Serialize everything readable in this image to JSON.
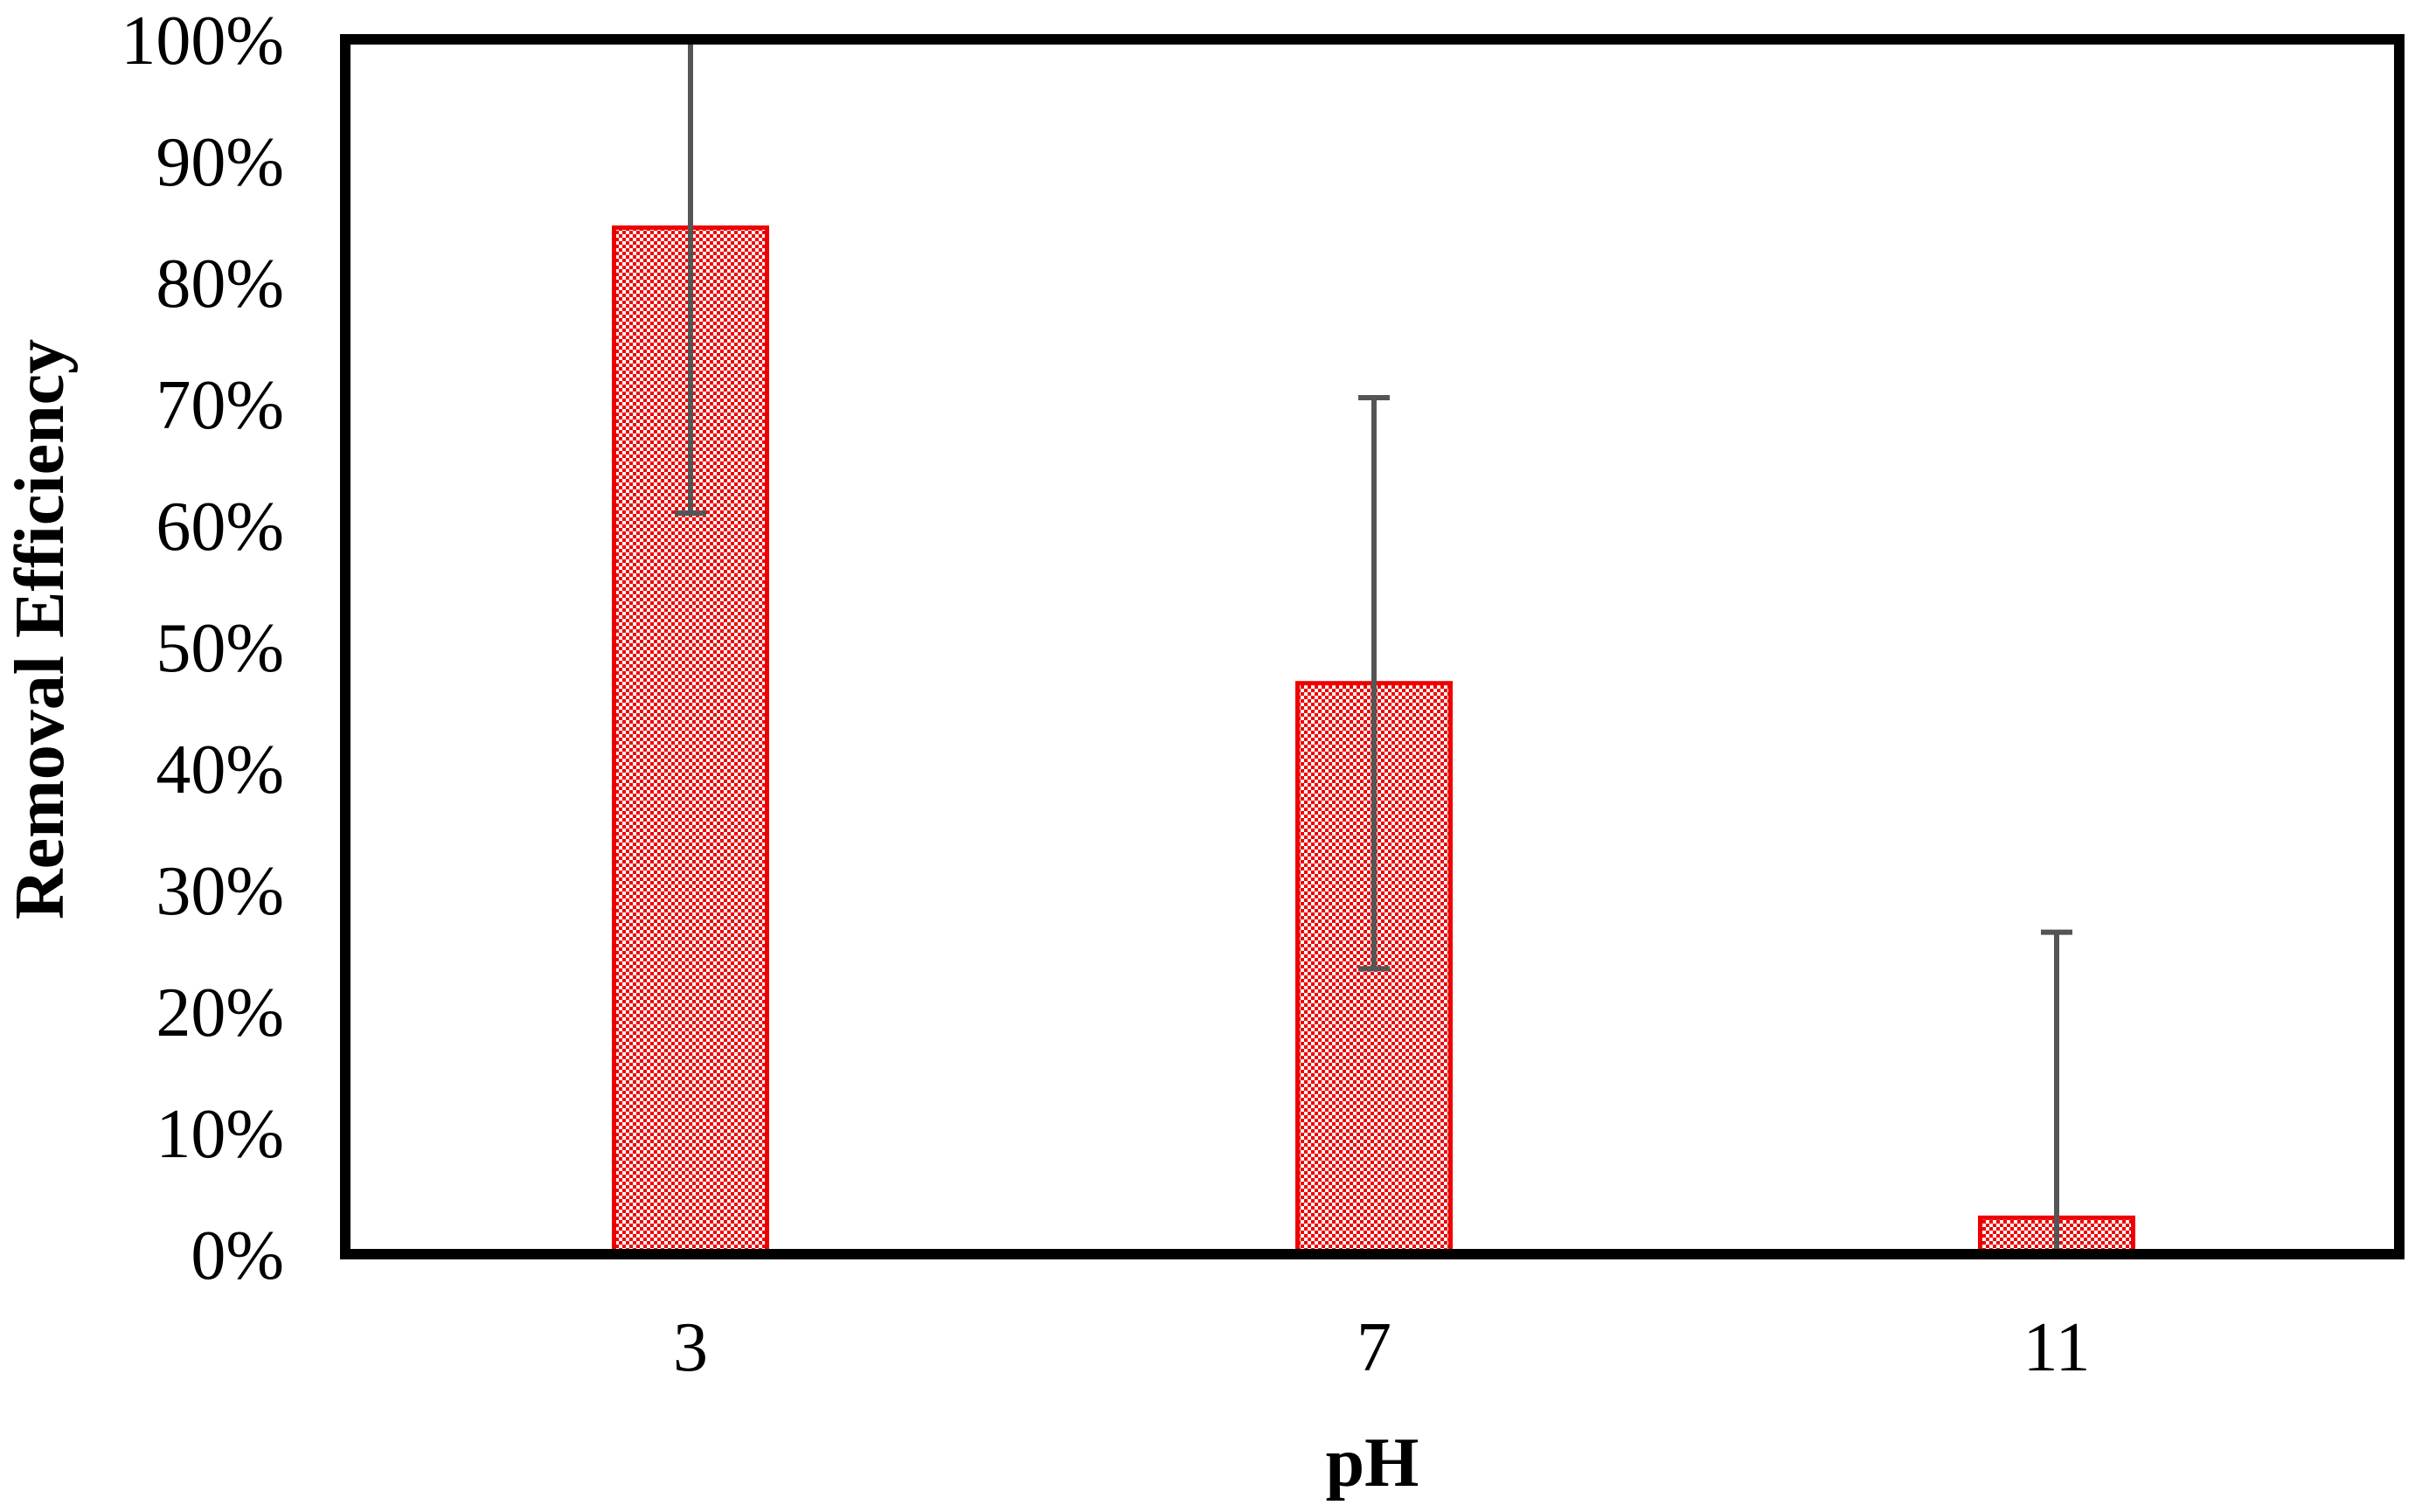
{
  "chart_data": {
    "type": "bar",
    "title": "",
    "xlabel": "pH",
    "ylabel": "Removal Efficiency",
    "categories": [
      "3",
      "7",
      "11"
    ],
    "series": [
      {
        "values": [
          84.5,
          47,
          3
        ],
        "error_plus": [
          15.5,
          23.5,
          23.5
        ],
        "error_minus": [
          23.5,
          23.5,
          3
        ],
        "color": "#ee0000"
      }
    ],
    "ylim": [
      0,
      100
    ],
    "yticks": [
      0,
      10,
      20,
      30,
      40,
      50,
      60,
      70,
      80,
      90,
      100
    ],
    "ytick_labels": [
      "0%",
      "10%",
      "20%",
      "30%",
      "40%",
      "50%",
      "60%",
      "70%",
      "80%",
      "90%",
      "100%"
    ],
    "grid": false,
    "legend": "none",
    "error_bar_color": "#555555",
    "frame_color": "#000000"
  }
}
